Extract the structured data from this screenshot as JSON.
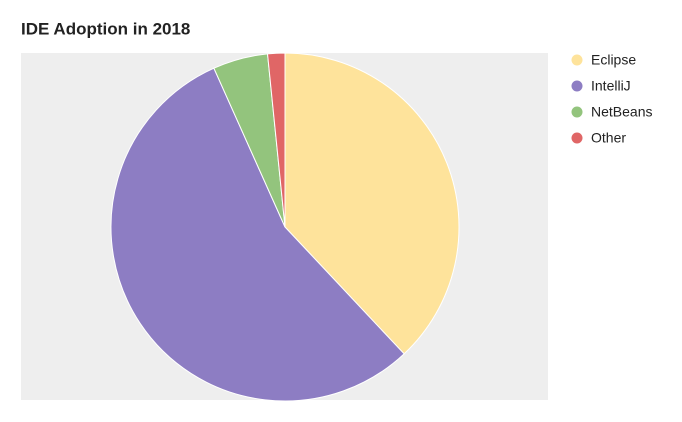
{
  "chart_data": {
    "type": "pie",
    "title": "IDE Adoption in 2018",
    "categories": [
      "Eclipse",
      "IntelliJ",
      "NetBeans",
      "Other"
    ],
    "values": [
      38,
      55.3,
      5.1,
      1.6
    ],
    "colors": [
      "#fee39b",
      "#8d7dc3",
      "#93c47d",
      "#e06666"
    ],
    "legend": "right"
  }
}
